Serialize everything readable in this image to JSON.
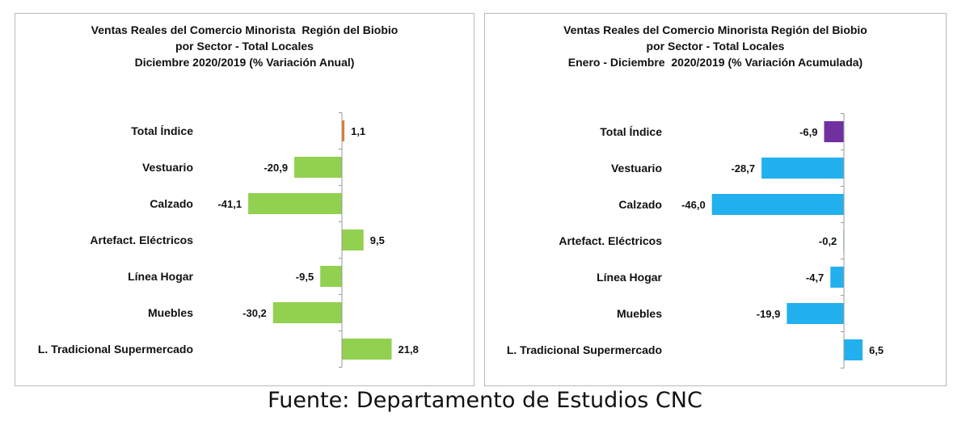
{
  "charts": [
    {
      "title_lines": [
        "Ventas Reales del Comercio Minorista  Región del Biobio",
        "por Sector - Total Locales",
        "Diciembre 2020/2019 (% Variación Anual)"
      ]
    },
    {
      "title_lines": [
        "Ventas Reales del Comercio Minorista Región del Biobio",
        "por Sector - Total Locales",
        "Enero - Diciembre  2020/2019 (% Variación Acumulada)"
      ]
    }
  ],
  "footer": "Fuente: Departamento de Estudios CNC",
  "chart_data": [
    {
      "type": "bar",
      "orientation": "horizontal",
      "title": "Ventas Reales del Comercio Minorista  Región del Biobio por Sector - Total Locales Diciembre 2020/2019 (% Variación Anual)",
      "categories": [
        "Total Índice",
        "Vestuario",
        "Calzado",
        "Artefact. Eléctricos",
        "Línea Hogar",
        "Muebles",
        "L. Tradicional Supermercado"
      ],
      "values": [
        1.1,
        -20.9,
        -41.1,
        9.5,
        -9.5,
        -30.2,
        21.8
      ],
      "data_labels": [
        "1,1",
        "-20,9",
        "-41,1",
        "9,5",
        "-9,5",
        "-30,2",
        "21,8"
      ],
      "colors": [
        "#e07a2e",
        "#92d050",
        "#92d050",
        "#92d050",
        "#92d050",
        "#92d050",
        "#92d050"
      ],
      "xlim": [
        -42,
        22
      ],
      "grid": false,
      "legend": "none"
    },
    {
      "type": "bar",
      "orientation": "horizontal",
      "title": "Ventas Reales del Comercio Minorista Región del Biobio por Sector - Total Locales Enero - Diciembre  2020/2019 (% Variación Acumulada)",
      "categories": [
        "Total Índice",
        "Vestuario",
        "Calzado",
        "Artefact. Eléctricos",
        "Línea Hogar",
        "Muebles",
        "L. Tradicional Supermercado"
      ],
      "values": [
        -6.9,
        -28.7,
        -46.0,
        -0.2,
        -4.7,
        -19.9,
        6.5
      ],
      "data_labels": [
        "-6,9",
        "-28,7",
        "-46,0",
        "-0,2",
        "-4,7",
        "-19,9",
        "6,5"
      ],
      "colors": [
        "#7030a0",
        "#22b0ee",
        "#22b0ee",
        "#22b0ee",
        "#22b0ee",
        "#22b0ee",
        "#22b0ee"
      ],
      "xlim": [
        -47,
        7
      ],
      "grid": false,
      "legend": "none"
    }
  ]
}
